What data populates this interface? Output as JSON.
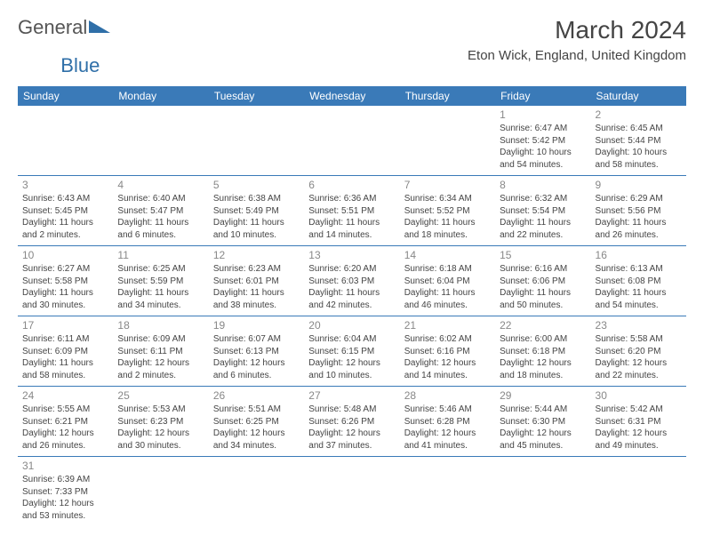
{
  "logo": {
    "pre": "General",
    "post": "Blue"
  },
  "title": {
    "month": "March 2024",
    "location": "Eton Wick, England, United Kingdom"
  },
  "colors": {
    "header_bg": "#3a7ab8",
    "border": "#3a7ab8",
    "daynum": "#888888",
    "text": "#444444"
  },
  "day_headers": [
    "Sunday",
    "Monday",
    "Tuesday",
    "Wednesday",
    "Thursday",
    "Friday",
    "Saturday"
  ],
  "weeks": [
    [
      null,
      null,
      null,
      null,
      null,
      {
        "n": "1",
        "sunrise": "Sunrise: 6:47 AM",
        "sunset": "Sunset: 5:42 PM",
        "daylight": "Daylight: 10 hours and 54 minutes."
      },
      {
        "n": "2",
        "sunrise": "Sunrise: 6:45 AM",
        "sunset": "Sunset: 5:44 PM",
        "daylight": "Daylight: 10 hours and 58 minutes."
      }
    ],
    [
      {
        "n": "3",
        "sunrise": "Sunrise: 6:43 AM",
        "sunset": "Sunset: 5:45 PM",
        "daylight": "Daylight: 11 hours and 2 minutes."
      },
      {
        "n": "4",
        "sunrise": "Sunrise: 6:40 AM",
        "sunset": "Sunset: 5:47 PM",
        "daylight": "Daylight: 11 hours and 6 minutes."
      },
      {
        "n": "5",
        "sunrise": "Sunrise: 6:38 AM",
        "sunset": "Sunset: 5:49 PM",
        "daylight": "Daylight: 11 hours and 10 minutes."
      },
      {
        "n": "6",
        "sunrise": "Sunrise: 6:36 AM",
        "sunset": "Sunset: 5:51 PM",
        "daylight": "Daylight: 11 hours and 14 minutes."
      },
      {
        "n": "7",
        "sunrise": "Sunrise: 6:34 AM",
        "sunset": "Sunset: 5:52 PM",
        "daylight": "Daylight: 11 hours and 18 minutes."
      },
      {
        "n": "8",
        "sunrise": "Sunrise: 6:32 AM",
        "sunset": "Sunset: 5:54 PM",
        "daylight": "Daylight: 11 hours and 22 minutes."
      },
      {
        "n": "9",
        "sunrise": "Sunrise: 6:29 AM",
        "sunset": "Sunset: 5:56 PM",
        "daylight": "Daylight: 11 hours and 26 minutes."
      }
    ],
    [
      {
        "n": "10",
        "sunrise": "Sunrise: 6:27 AM",
        "sunset": "Sunset: 5:58 PM",
        "daylight": "Daylight: 11 hours and 30 minutes."
      },
      {
        "n": "11",
        "sunrise": "Sunrise: 6:25 AM",
        "sunset": "Sunset: 5:59 PM",
        "daylight": "Daylight: 11 hours and 34 minutes."
      },
      {
        "n": "12",
        "sunrise": "Sunrise: 6:23 AM",
        "sunset": "Sunset: 6:01 PM",
        "daylight": "Daylight: 11 hours and 38 minutes."
      },
      {
        "n": "13",
        "sunrise": "Sunrise: 6:20 AM",
        "sunset": "Sunset: 6:03 PM",
        "daylight": "Daylight: 11 hours and 42 minutes."
      },
      {
        "n": "14",
        "sunrise": "Sunrise: 6:18 AM",
        "sunset": "Sunset: 6:04 PM",
        "daylight": "Daylight: 11 hours and 46 minutes."
      },
      {
        "n": "15",
        "sunrise": "Sunrise: 6:16 AM",
        "sunset": "Sunset: 6:06 PM",
        "daylight": "Daylight: 11 hours and 50 minutes."
      },
      {
        "n": "16",
        "sunrise": "Sunrise: 6:13 AM",
        "sunset": "Sunset: 6:08 PM",
        "daylight": "Daylight: 11 hours and 54 minutes."
      }
    ],
    [
      {
        "n": "17",
        "sunrise": "Sunrise: 6:11 AM",
        "sunset": "Sunset: 6:09 PM",
        "daylight": "Daylight: 11 hours and 58 minutes."
      },
      {
        "n": "18",
        "sunrise": "Sunrise: 6:09 AM",
        "sunset": "Sunset: 6:11 PM",
        "daylight": "Daylight: 12 hours and 2 minutes."
      },
      {
        "n": "19",
        "sunrise": "Sunrise: 6:07 AM",
        "sunset": "Sunset: 6:13 PM",
        "daylight": "Daylight: 12 hours and 6 minutes."
      },
      {
        "n": "20",
        "sunrise": "Sunrise: 6:04 AM",
        "sunset": "Sunset: 6:15 PM",
        "daylight": "Daylight: 12 hours and 10 minutes."
      },
      {
        "n": "21",
        "sunrise": "Sunrise: 6:02 AM",
        "sunset": "Sunset: 6:16 PM",
        "daylight": "Daylight: 12 hours and 14 minutes."
      },
      {
        "n": "22",
        "sunrise": "Sunrise: 6:00 AM",
        "sunset": "Sunset: 6:18 PM",
        "daylight": "Daylight: 12 hours and 18 minutes."
      },
      {
        "n": "23",
        "sunrise": "Sunrise: 5:58 AM",
        "sunset": "Sunset: 6:20 PM",
        "daylight": "Daylight: 12 hours and 22 minutes."
      }
    ],
    [
      {
        "n": "24",
        "sunrise": "Sunrise: 5:55 AM",
        "sunset": "Sunset: 6:21 PM",
        "daylight": "Daylight: 12 hours and 26 minutes."
      },
      {
        "n": "25",
        "sunrise": "Sunrise: 5:53 AM",
        "sunset": "Sunset: 6:23 PM",
        "daylight": "Daylight: 12 hours and 30 minutes."
      },
      {
        "n": "26",
        "sunrise": "Sunrise: 5:51 AM",
        "sunset": "Sunset: 6:25 PM",
        "daylight": "Daylight: 12 hours and 34 minutes."
      },
      {
        "n": "27",
        "sunrise": "Sunrise: 5:48 AM",
        "sunset": "Sunset: 6:26 PM",
        "daylight": "Daylight: 12 hours and 37 minutes."
      },
      {
        "n": "28",
        "sunrise": "Sunrise: 5:46 AM",
        "sunset": "Sunset: 6:28 PM",
        "daylight": "Daylight: 12 hours and 41 minutes."
      },
      {
        "n": "29",
        "sunrise": "Sunrise: 5:44 AM",
        "sunset": "Sunset: 6:30 PM",
        "daylight": "Daylight: 12 hours and 45 minutes."
      },
      {
        "n": "30",
        "sunrise": "Sunrise: 5:42 AM",
        "sunset": "Sunset: 6:31 PM",
        "daylight": "Daylight: 12 hours and 49 minutes."
      }
    ],
    [
      {
        "n": "31",
        "sunrise": "Sunrise: 6:39 AM",
        "sunset": "Sunset: 7:33 PM",
        "daylight": "Daylight: 12 hours and 53 minutes."
      },
      null,
      null,
      null,
      null,
      null,
      null
    ]
  ]
}
